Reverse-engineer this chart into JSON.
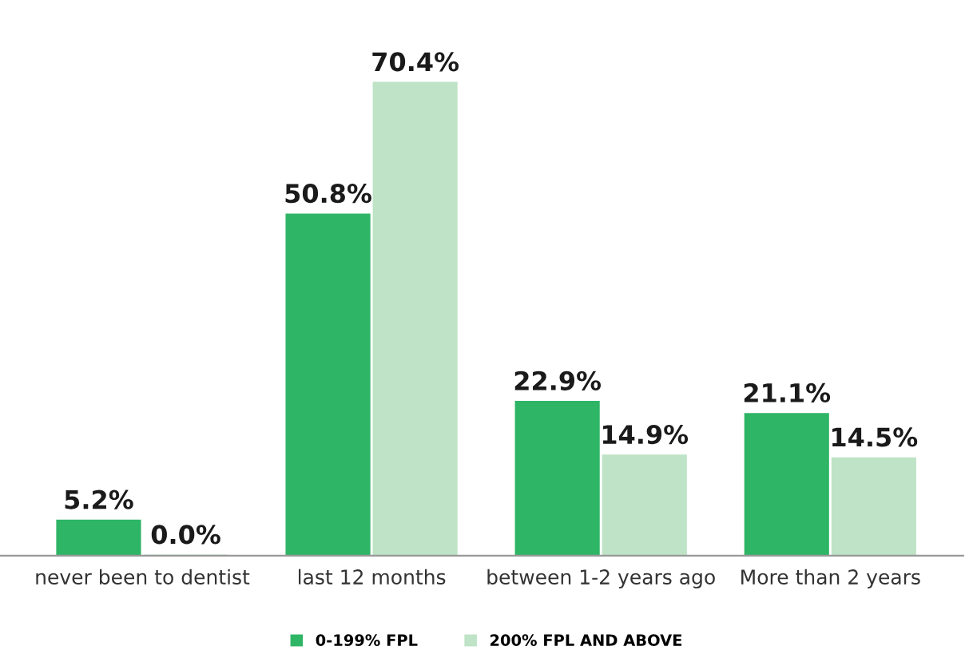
{
  "chart_data": {
    "type": "bar",
    "categories": [
      "never been to dentist",
      "last 12 months",
      "between 1-2 years ago",
      "More than 2 years"
    ],
    "series": [
      {
        "name": "0-199% FPL",
        "color": "#2eb566",
        "values": [
          5.2,
          50.8,
          22.9,
          21.1
        ],
        "value_labels": [
          "5.2%",
          "50.8%",
          "22.9%",
          "21.1%"
        ]
      },
      {
        "name": "200% FPL AND ABOVE",
        "color": "#bee3c6",
        "values": [
          0.0,
          70.4,
          14.9,
          14.5
        ],
        "value_labels": [
          "0.0%",
          "70.4%",
          "14.9%",
          "14.5%"
        ]
      }
    ],
    "grid": false,
    "legend": "bottom"
  }
}
